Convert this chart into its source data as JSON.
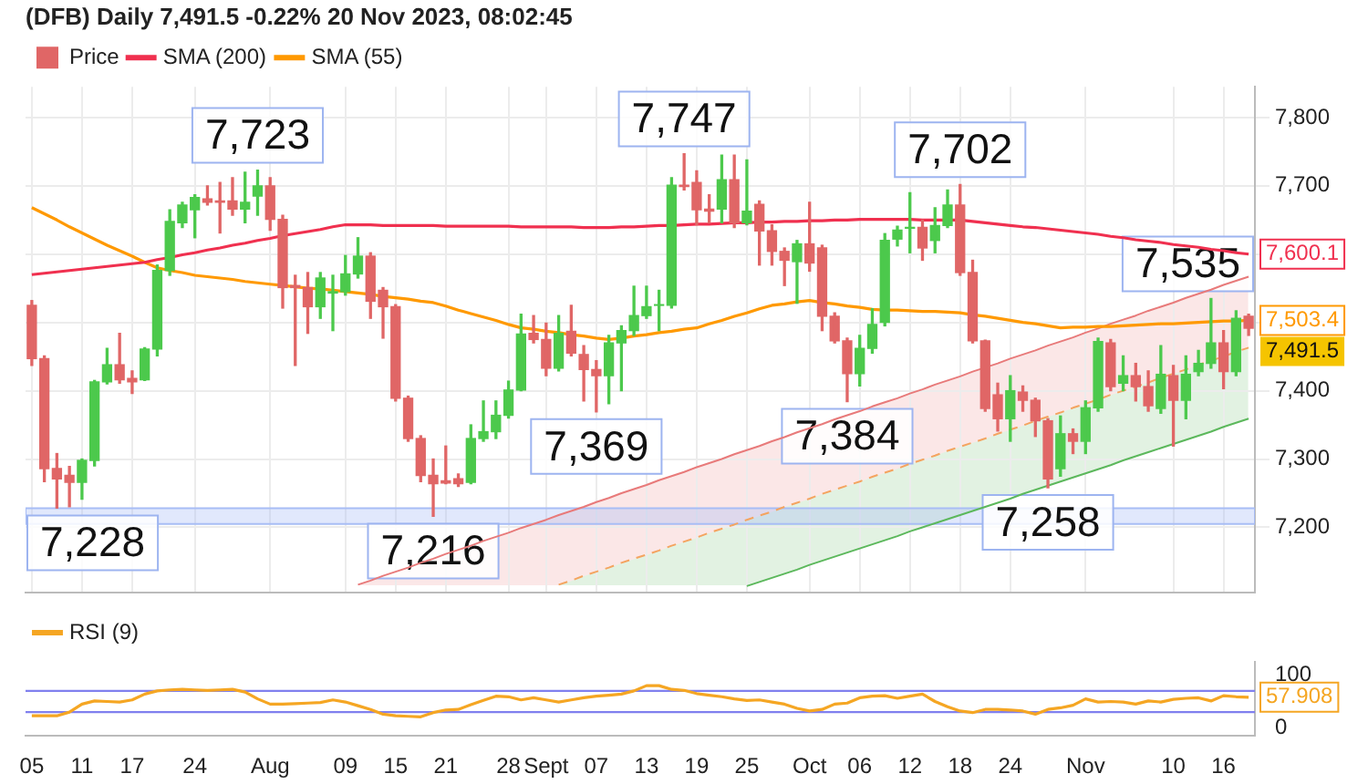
{
  "chart_data": [
    {
      "type": "candlestick",
      "title": "(DFB) Daily 7,491.5 -0.22% 20 Nov 2023, 08:02:45",
      "legend": "top left",
      "grid": true,
      "tick_labels": "y",
      "categories": [
        null,
        null,
        null,
        null,
        null,
        null,
        null,
        null,
        null,
        null,
        null,
        null,
        null,
        null,
        null,
        null,
        null,
        null,
        null,
        null,
        null,
        null,
        null,
        null,
        null,
        null,
        null,
        null,
        null,
        null,
        null,
        null,
        null,
        null,
        null,
        null,
        null,
        null,
        null,
        null,
        null,
        null,
        null,
        null,
        null,
        null,
        null,
        null,
        null,
        null,
        null,
        null,
        null,
        null,
        null,
        null,
        null,
        null,
        null,
        null,
        null,
        null,
        null,
        null,
        null,
        null,
        null,
        null,
        null,
        null,
        null,
        null,
        null,
        null,
        null,
        null,
        null,
        null,
        null,
        null,
        null,
        null,
        null,
        null,
        null,
        null,
        null,
        null,
        null,
        null,
        null,
        null,
        null,
        null,
        null,
        null,
        null,
        null
      ],
      "ylim": [
        7105,
        7845
      ],
      "yticks": [
        {
          "value": 7200,
          "label": "7,200"
        },
        {
          "value": 7300,
          "label": "7,300"
        },
        {
          "value": 7400,
          "label": "7,400"
        },
        {
          "value": 7500,
          "label": null
        },
        {
          "value": 7600,
          "label": null
        },
        {
          "value": 7700,
          "label": "7,700"
        },
        {
          "value": 7800,
          "label": "7,800"
        }
      ],
      "bands": [
        {
          "axis": "y",
          "from": 7205,
          "to": 7228,
          "color": "#a8bdf5"
        }
      ],
      "series": [
        {
          "name": "Price",
          "color": "#e06666",
          "ohlc": [
            [
              7525,
              7532,
              7437,
              7447
            ],
            [
              7447,
              7451,
              7267,
              7286
            ],
            [
              7286,
              7308,
              7228,
              7271
            ],
            [
              7276,
              7289,
              7230,
              7266
            ],
            [
              7266,
              7300,
              7241,
              7298
            ],
            [
              7298,
              7415,
              7290,
              7413
            ],
            [
              7413,
              7462,
              7410,
              7438
            ],
            [
              7438,
              7484,
              7411,
              7416
            ],
            [
              7418,
              7429,
              7396,
              7413
            ],
            [
              7416,
              7463,
              7415,
              7461
            ],
            [
              7461,
              7584,
              7451,
              7576
            ],
            [
              7576,
              7665,
              7569,
              7648
            ],
            [
              7646,
              7676,
              7639,
              7672
            ],
            [
              7665,
              7687,
              7624,
              7683
            ],
            [
              7681,
              7700,
              7672,
              7676
            ],
            [
              7678,
              7705,
              7631,
              7676
            ],
            [
              7678,
              7712,
              7657,
              7666
            ],
            [
              7666,
              7720,
              7646,
              7676
            ],
            [
              7685,
              7723,
              7657,
              7700
            ],
            [
              7700,
              7712,
              7635,
              7651
            ],
            [
              7651,
              7657,
              7521,
              7551
            ],
            [
              7554,
              7569,
              7437,
              7551
            ],
            [
              7551,
              7573,
              7484,
              7523
            ],
            [
              7523,
              7573,
              7506,
              7565
            ],
            [
              7543,
              7569,
              7488,
              7545
            ],
            [
              7545,
              7598,
              7540,
              7571
            ],
            [
              7571,
              7624,
              7565,
              7597
            ],
            [
              7597,
              7602,
              7506,
              7531
            ],
            [
              7547,
              7551,
              7477,
              7523
            ],
            [
              7523,
              7526,
              7385,
              7389
            ],
            [
              7389,
              7392,
              7326,
              7330
            ],
            [
              7330,
              7334,
              7267,
              7276
            ],
            [
              7276,
              7300,
              7216,
              7264
            ],
            [
              7268,
              7319,
              7264,
              7265
            ],
            [
              7271,
              7278,
              7260,
              7264
            ],
            [
              7266,
              7350,
              7264,
              7330
            ],
            [
              7330,
              7385,
              7326,
              7340
            ],
            [
              7340,
              7385,
              7330,
              7364
            ],
            [
              7364,
              7414,
              7360,
              7401
            ],
            [
              7401,
              7512,
              7400,
              7483
            ],
            [
              7484,
              7510,
              7470,
              7475
            ],
            [
              7475,
              7499,
              7422,
              7433
            ],
            [
              7433,
              7510,
              7429,
              7484
            ],
            [
              7487,
              7525,
              7451,
              7455
            ],
            [
              7453,
              7466,
              7385,
              7431
            ],
            [
              7431,
              7444,
              7369,
              7422
            ],
            [
              7422,
              7481,
              7381,
              7470
            ],
            [
              7470,
              7495,
              7400,
              7488
            ],
            [
              7488,
              7553,
              7481,
              7510
            ],
            [
              7510,
              7553,
              7506,
              7523
            ],
            [
              7525,
              7547,
              7488,
              7526
            ],
            [
              7525,
              7712,
              7521,
              7701
            ],
            [
              7701,
              7747,
              7694,
              7699
            ],
            [
              7705,
              7722,
              7643,
              7665
            ],
            [
              7666,
              7687,
              7646,
              7663
            ],
            [
              7666,
              7745,
              7646,
              7709
            ],
            [
              7709,
              7745,
              7639,
              7646
            ],
            [
              7646,
              7738,
              7643,
              7663
            ],
            [
              7673,
              7678,
              7584,
              7634
            ],
            [
              7634,
              7643,
              7584,
              7604
            ],
            [
              7604,
              7609,
              7554,
              7591
            ],
            [
              7589,
              7620,
              7528,
              7615
            ],
            [
              7615,
              7676,
              7575,
              7587
            ],
            [
              7609,
              7613,
              7488,
              7509
            ],
            [
              7509,
              7514,
              7470,
              7473
            ],
            [
              7473,
              7477,
              7384,
              7425
            ],
            [
              7425,
              7481,
              7407,
              7462
            ],
            [
              7462,
              7520,
              7455,
              7497
            ],
            [
              7500,
              7630,
              7495,
              7620
            ],
            [
              7622,
              7641,
              7612,
              7635
            ],
            [
              7638,
              7690,
              7602,
              7639
            ],
            [
              7639,
              7650,
              7591,
              7609
            ],
            [
              7620,
              7668,
              7602,
              7642
            ],
            [
              7642,
              7694,
              7639,
              7672
            ],
            [
              7672,
              7702,
              7569,
              7573
            ],
            [
              7573,
              7591,
              7470,
              7473
            ],
            [
              7473,
              7474,
              7370,
              7374
            ],
            [
              7394,
              7411,
              7341,
              7359
            ],
            [
              7359,
              7422,
              7326,
              7400
            ],
            [
              7398,
              7407,
              7370,
              7386
            ],
            [
              7386,
              7389,
              7333,
              7356
            ],
            [
              7356,
              7359,
              7258,
              7271
            ],
            [
              7286,
              7363,
              7275,
              7337
            ],
            [
              7337,
              7344,
              7308,
              7326
            ],
            [
              7326,
              7385,
              7308,
              7375
            ],
            [
              7375,
              7477,
              7370,
              7472
            ],
            [
              7470,
              7475,
              7400,
              7406
            ],
            [
              7411,
              7451,
              7400,
              7422
            ],
            [
              7422,
              7440,
              7385,
              7406
            ],
            [
              7406,
              7429,
              7370,
              7378
            ],
            [
              7374,
              7466,
              7367,
              7424
            ],
            [
              7422,
              7437,
              7319,
              7386
            ],
            [
              7386,
              7451,
              7359,
              7424
            ],
            [
              7428,
              7459,
              7422,
              7440
            ],
            [
              7440,
              7535,
              7433,
              7470
            ],
            [
              7470,
              7488,
              7403,
              7428
            ],
            [
              7428,
              7517,
              7422,
              7506
            ],
            [
              7509,
              7512,
              7481,
              7491.5
            ]
          ],
          "colors": [
            "#e06666",
            "#e06666",
            "#e06666",
            "#e06666",
            "#4cc94c",
            "#4cc94c",
            "#4cc94c",
            "#e06666",
            "#e06666",
            "#4cc94c",
            "#4cc94c",
            "#4cc94c",
            "#4cc94c",
            "#4cc94c",
            "#e06666",
            "#e06666",
            "#e06666",
            "#4cc94c",
            "#4cc94c",
            "#e06666",
            "#e06666",
            "#e06666",
            "#e06666",
            "#4cc94c",
            "#4cc94c",
            "#4cc94c",
            "#4cc94c",
            "#e06666",
            "#e06666",
            "#e06666",
            "#e06666",
            "#e06666",
            "#e06666",
            "#e06666",
            "#e06666",
            "#4cc94c",
            "#4cc94c",
            "#4cc94c",
            "#4cc94c",
            "#4cc94c",
            "#e06666",
            "#e06666",
            "#4cc94c",
            "#e06666",
            "#e06666",
            "#e06666",
            "#4cc94c",
            "#4cc94c",
            "#4cc94c",
            "#4cc94c",
            "#4cc94c",
            "#4cc94c",
            "#e06666",
            "#e06666",
            "#e06666",
            "#4cc94c",
            "#e06666",
            "#4cc94c",
            "#e06666",
            "#e06666",
            "#e06666",
            "#4cc94c",
            "#e06666",
            "#e06666",
            "#e06666",
            "#e06666",
            "#4cc94c",
            "#4cc94c",
            "#4cc94c",
            "#4cc94c",
            "#4cc94c",
            "#e06666",
            "#4cc94c",
            "#4cc94c",
            "#e06666",
            "#e06666",
            "#e06666",
            "#e06666",
            "#4cc94c",
            "#e06666",
            "#e06666",
            "#e06666",
            "#4cc94c",
            "#e06666",
            "#4cc94c",
            "#4cc94c",
            "#e06666",
            "#4cc94c",
            "#e06666",
            "#e06666",
            "#4cc94c",
            "#e06666",
            "#4cc94c",
            "#4cc94c",
            "#4cc94c",
            "#e06666",
            "#4cc94c",
            "#e06666"
          ]
        },
        {
          "name": "SMA (200)",
          "type": "line",
          "color": "#f0304f",
          "values": [
            7570,
            7572,
            7574,
            7576,
            7578,
            7580,
            7582,
            7584,
            7586,
            7588,
            7592,
            7595,
            7599,
            7602,
            7606,
            7609,
            7613,
            7616,
            7620,
            7623,
            7627,
            7630,
            7633,
            7636,
            7640,
            7643,
            7643,
            7643,
            7642,
            7642,
            7642,
            7642,
            7642,
            7641,
            7641,
            7641,
            7641,
            7641,
            7641,
            7640,
            7640,
            7640,
            7640,
            7640,
            7639,
            7639,
            7639,
            7640,
            7640,
            7641,
            7642,
            7642,
            7643,
            7644,
            7644,
            7645,
            7646,
            7646,
            7647,
            7647,
            7648,
            7648,
            7649,
            7649,
            7650,
            7650,
            7651,
            7651,
            7651,
            7651,
            7651,
            7650,
            7650,
            7650,
            7650,
            7648,
            7646,
            7644,
            7642,
            7640,
            7639,
            7637,
            7635,
            7633,
            7631,
            7629,
            7626,
            7624,
            7621,
            7619,
            7617,
            7614,
            7612,
            7610,
            7607,
            7605,
            7602,
            7600
          ]
        },
        {
          "name": "SMA (55)",
          "type": "line",
          "color": "#ff9900",
          "values": [
            7668,
            7659,
            7650,
            7640,
            7631,
            7622,
            7613,
            7605,
            7597,
            7588,
            7580,
            7576,
            7573,
            7569,
            7567,
            7565,
            7563,
            7560,
            7558,
            7556,
            7554,
            7552,
            7550,
            7549,
            7547,
            7545,
            7543,
            7541,
            7538,
            7536,
            7534,
            7531,
            7529,
            7524,
            7518,
            7513,
            7508,
            7503,
            7497,
            7492,
            7490,
            7487,
            7485,
            7482,
            7480,
            7477,
            7475,
            7477,
            7480,
            7482,
            7485,
            7487,
            7490,
            7492,
            7498,
            7503,
            7509,
            7514,
            7520,
            7525,
            7527,
            7530,
            7532,
            7529,
            7527,
            7524,
            7522,
            7519,
            7518,
            7518,
            7517,
            7516,
            7516,
            7515,
            7514,
            7511,
            7509,
            7506,
            7503,
            7500,
            7498,
            7495,
            7492,
            7493,
            7493,
            7494,
            7494,
            7495,
            7496,
            7497,
            7498,
            7498,
            7499,
            7500,
            7501,
            7502,
            7502,
            7503
          ]
        },
        {
          "type": "line",
          "color": "#e87a7a",
          "values": [
            null,
            null,
            null,
            null,
            null,
            null,
            null,
            null,
            null,
            null,
            null,
            null,
            null,
            null,
            null,
            null,
            null,
            null,
            null,
            null,
            null,
            null,
            null,
            null,
            null,
            null,
            7116,
            7122,
            7129,
            7135,
            7141,
            7148,
            7154,
            7161,
            7167,
            7173,
            7180,
            7186,
            7192,
            7199,
            7205,
            7211,
            7218,
            7224,
            7230,
            7237,
            7243,
            7250,
            7256,
            7262,
            7269,
            7275,
            7281,
            7288,
            7294,
            7300,
            7307,
            7313,
            7319,
            7326,
            7332,
            7339,
            7345,
            7351,
            7358,
            7364,
            7370,
            7377,
            7383,
            7389,
            7396,
            7402,
            7409,
            7415,
            7421,
            7428,
            7434,
            7440,
            7447,
            7453,
            7459,
            7466,
            7472,
            7478,
            7485,
            7491,
            7498,
            7504,
            7510,
            7517,
            7523,
            7529,
            7536,
            7542,
            7548,
            7555,
            7561,
            7567
          ]
        },
        {
          "type": "line",
          "color": "#f4a460",
          "line_style": "dashed",
          "values": [
            null,
            null,
            null,
            null,
            null,
            null,
            null,
            null,
            null,
            null,
            null,
            null,
            null,
            null,
            null,
            null,
            null,
            null,
            null,
            null,
            null,
            null,
            null,
            null,
            null,
            null,
            null,
            null,
            null,
            null,
            null,
            null,
            null,
            null,
            null,
            null,
            null,
            null,
            null,
            null,
            null,
            null,
            7116,
            7122,
            7129,
            7135,
            7141,
            7148,
            7154,
            7160,
            7166,
            7173,
            7179,
            7185,
            7192,
            7198,
            7204,
            7211,
            7217,
            7223,
            7230,
            7236,
            7242,
            7249,
            7255,
            7261,
            7267,
            7274,
            7280,
            7286,
            7293,
            7299,
            7305,
            7312,
            7318,
            7324,
            7330,
            7337,
            7343,
            7349,
            7356,
            7362,
            7368,
            7375,
            7381,
            7387,
            7394,
            7400,
            7406,
            7412,
            7419,
            7425,
            7431,
            7438,
            7444,
            7450,
            7457,
            7463
          ]
        },
        {
          "type": "line",
          "color": "#5cb85c",
          "values": [
            null,
            null,
            null,
            null,
            null,
            null,
            null,
            null,
            null,
            null,
            null,
            null,
            null,
            null,
            null,
            null,
            null,
            null,
            null,
            null,
            null,
            null,
            null,
            null,
            null,
            null,
            null,
            null,
            null,
            null,
            null,
            null,
            null,
            null,
            null,
            null,
            null,
            null,
            null,
            null,
            null,
            null,
            null,
            null,
            null,
            null,
            null,
            null,
            null,
            null,
            null,
            null,
            null,
            null,
            null,
            null,
            null,
            7114,
            7120,
            7126,
            7132,
            7138,
            7145,
            7151,
            7157,
            7163,
            7169,
            7175,
            7181,
            7187,
            7194,
            7200,
            7206,
            7212,
            7218,
            7224,
            7230,
            7236,
            7242,
            7249,
            7255,
            7261,
            7267,
            7273,
            7279,
            7285,
            7291,
            7298,
            7304,
            7310,
            7316,
            7322,
            7328,
            7334,
            7340,
            7347,
            7353,
            7359
          ]
        }
      ],
      "annotations": [
        {
          "text": "7,228",
          "y": 7228
        },
        {
          "text": "7,723",
          "y": 7723
        },
        {
          "text": "7,216",
          "y": 7216
        },
        {
          "text": "7,369",
          "y": 7369
        },
        {
          "text": "7,747",
          "y": 7747
        },
        {
          "text": "7,384",
          "y": 7384
        },
        {
          "text": "7,702",
          "y": 7702
        },
        {
          "text": "7,258",
          "y": 7258
        },
        {
          "text": "7,535",
          "y": 7535
        },
        "7,491.5",
        "7,600.1",
        "7,503.4"
      ]
    },
    {
      "type": "line",
      "legend": "top left",
      "categories": [
        "05",
        null,
        null,
        null,
        "11",
        null,
        null,
        null,
        "17",
        null,
        null,
        null,
        null,
        "24",
        null,
        null,
        null,
        null,
        null,
        "Aug",
        null,
        null,
        null,
        null,
        null,
        "09",
        null,
        null,
        null,
        "15",
        null,
        null,
        null,
        "21",
        null,
        null,
        null,
        null,
        "28",
        null,
        null,
        "Sept",
        null,
        null,
        null,
        "07",
        null,
        null,
        null,
        "13",
        null,
        null,
        null,
        "19",
        null,
        null,
        null,
        "25",
        null,
        null,
        null,
        null,
        "Oct",
        null,
        null,
        null,
        "06",
        null,
        null,
        null,
        "12",
        null,
        null,
        null,
        "18",
        null,
        null,
        null,
        "24",
        null,
        null,
        null,
        null,
        null,
        "Nov",
        null,
        null,
        null,
        null,
        null,
        null,
        "10",
        null,
        null,
        null,
        "16",
        null,
        null
      ],
      "ylim": [
        -15,
        125
      ],
      "yticks": [
        0,
        100
      ],
      "ref_lines": [
        {
          "axis": "y",
          "value": 70,
          "color": "#8080ee"
        },
        {
          "axis": "y",
          "value": 30,
          "color": "#8080ee"
        }
      ],
      "series": [
        {
          "name": "RSI (9)",
          "color": "#f5a623",
          "values": [
            23,
            23,
            23,
            30,
            45,
            51,
            50,
            49,
            53,
            64,
            70,
            72,
            73,
            72,
            71,
            72,
            73,
            68,
            55,
            45,
            45,
            46,
            47,
            48,
            53,
            49,
            42,
            35,
            26,
            23,
            22,
            21,
            29,
            34,
            35,
            44,
            52,
            60,
            59,
            53,
            57,
            53,
            49,
            53,
            57,
            60,
            62,
            64,
            70,
            80,
            80,
            73,
            71,
            65,
            62,
            59,
            55,
            52,
            53,
            49,
            45,
            37,
            32,
            35,
            45,
            47,
            57,
            60,
            61,
            56,
            60,
            64,
            50,
            40,
            32,
            29,
            35,
            35,
            34,
            32,
            26,
            35,
            38,
            43,
            55,
            49,
            50,
            49,
            45,
            51,
            49,
            54,
            56,
            57,
            51,
            61,
            59,
            58
          ]
        }
      ],
      "annotations": [
        "57.908"
      ]
    }
  ]
}
